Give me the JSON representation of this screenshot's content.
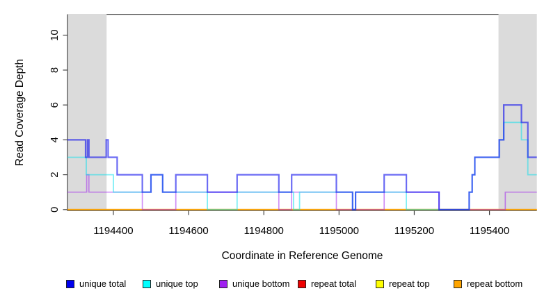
{
  "chart_data": {
    "type": "line",
    "subtype": "step-after",
    "title": "",
    "xlabel": "Coordinate in Reference Genome",
    "ylabel": "Read Coverage Depth",
    "xlim": [
      1194278,
      1195526
    ],
    "ylim": [
      0,
      11.2
    ],
    "x_ticks": [
      1194400,
      1194600,
      1194800,
      1195000,
      1195200,
      1195400
    ],
    "x_tick_labels": [
      "1194400",
      "1194600",
      "1194800",
      "1195000",
      "1195200",
      "1195400"
    ],
    "y_ticks": [
      0,
      2,
      4,
      6,
      8,
      10
    ],
    "y_tick_labels": [
      "0",
      "2",
      "4",
      "6",
      "8",
      "10"
    ],
    "grid": false,
    "legend_position": "bottom",
    "axis_color": "#454545",
    "highlight_regions": {
      "color": "#DBDBDB",
      "ranges": [
        [
          1194278,
          1194382
        ],
        [
          1195424,
          1195526
        ]
      ]
    },
    "series": [
      {
        "name": "repeat total",
        "color": "#DD0000",
        "opacity": 0.55,
        "width": 1.6,
        "points": [
          [
            1194278,
            0
          ],
          [
            1195526,
            0
          ]
        ]
      },
      {
        "name": "repeat top",
        "color": "#FFFF00",
        "opacity": 0.6,
        "width": 1.6,
        "points": [
          [
            1194278,
            0
          ],
          [
            1195526,
            0
          ]
        ]
      },
      {
        "name": "repeat bottom",
        "color": "#FF9D00",
        "opacity": 0.75,
        "width": 2,
        "points": [
          [
            1194278,
            0
          ],
          [
            1195526,
            0
          ]
        ]
      },
      {
        "name": "unique bottom",
        "color": "#A020F0",
        "opacity": 0.5,
        "width": 1.7,
        "points": [
          [
            1194278,
            1
          ],
          [
            1194329,
            2
          ],
          [
            1194335,
            1
          ],
          [
            1194477,
            0
          ],
          [
            1194566,
            1
          ],
          [
            1194840,
            0
          ],
          [
            1194874,
            1
          ],
          [
            1194993,
            0
          ],
          [
            1195120,
            1
          ],
          [
            1195266,
            0
          ],
          [
            1195442,
            1
          ],
          [
            1195526,
            1
          ]
        ]
      },
      {
        "name": "unique top",
        "color": "#00E0EE",
        "opacity": 0.5,
        "width": 1.8,
        "points": [
          [
            1194278,
            3
          ],
          [
            1194328,
            2
          ],
          [
            1194400,
            1
          ],
          [
            1194500,
            2
          ],
          [
            1194531,
            1
          ],
          [
            1194650,
            0
          ],
          [
            1194729,
            1
          ],
          [
            1194879,
            0
          ],
          [
            1194895,
            1
          ],
          [
            1195036,
            0
          ],
          [
            1195044,
            1
          ],
          [
            1195179,
            0
          ],
          [
            1195346,
            1
          ],
          [
            1195354,
            2
          ],
          [
            1195361,
            3
          ],
          [
            1195426,
            4
          ],
          [
            1195438,
            5
          ],
          [
            1195485,
            4
          ],
          [
            1195502,
            2
          ],
          [
            1195526,
            2
          ]
        ]
      },
      {
        "name": "unique total",
        "color": "#1010EE",
        "opacity": 0.62,
        "width": 2.2,
        "points": [
          [
            1194278,
            4
          ],
          [
            1194326,
            3
          ],
          [
            1194331,
            4
          ],
          [
            1194335,
            3
          ],
          [
            1194381,
            4
          ],
          [
            1194386,
            3
          ],
          [
            1194410,
            2
          ],
          [
            1194477,
            1
          ],
          [
            1194500,
            2
          ],
          [
            1194531,
            1
          ],
          [
            1194566,
            2
          ],
          [
            1194650,
            1
          ],
          [
            1194729,
            2
          ],
          [
            1194840,
            1
          ],
          [
            1194874,
            2
          ],
          [
            1194993,
            1
          ],
          [
            1195036,
            0
          ],
          [
            1195044,
            1
          ],
          [
            1195120,
            2
          ],
          [
            1195179,
            1
          ],
          [
            1195266,
            0
          ],
          [
            1195346,
            1
          ],
          [
            1195354,
            2
          ],
          [
            1195361,
            3
          ],
          [
            1195426,
            4
          ],
          [
            1195438,
            6
          ],
          [
            1195485,
            5
          ],
          [
            1195502,
            3
          ],
          [
            1195526,
            3
          ]
        ]
      }
    ],
    "legend": [
      {
        "label": "unique total",
        "color": "#0000EE"
      },
      {
        "label": "unique top",
        "color": "#00FFFF"
      },
      {
        "label": "unique bottom",
        "color": "#A020F0"
      },
      {
        "label": "repeat total",
        "color": "#EE0000"
      },
      {
        "label": "repeat top",
        "color": "#FFFF00"
      },
      {
        "label": "repeat bottom",
        "color": "#FFA500"
      }
    ]
  }
}
